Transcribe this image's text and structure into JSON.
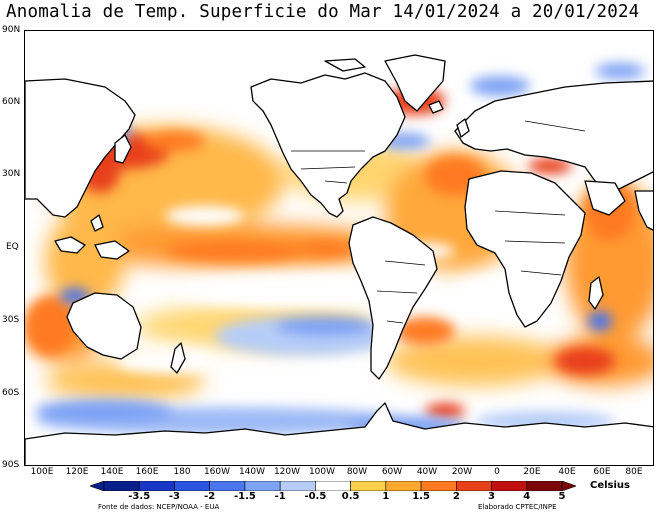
{
  "title": "Anomalia de Temp. Superficie do Mar 14/01/2024 a 20/01/2024",
  "lat_labels": [
    "90N",
    "60N",
    "30N",
    "EQ",
    "30S",
    "60S",
    "90S"
  ],
  "lon_labels": [
    "100E",
    "120E",
    "140E",
    "160E",
    "180",
    "160W",
    "140W",
    "120W",
    "100W",
    "80W",
    "60W",
    "40W",
    "20W",
    "0",
    "20E",
    "40E",
    "60E",
    "80E"
  ],
  "colorbar": {
    "labels": [
      "-3.5",
      "-3",
      "-2",
      "-1.5",
      "-1",
      "-0.5",
      "0.5",
      "1",
      "1.5",
      "2",
      "3",
      "4",
      "5"
    ],
    "colors": [
      "#0b1f8c",
      "#1737c4",
      "#2a55e0",
      "#4a77ee",
      "#7ea2f4",
      "#b6cdf8",
      "#ffffff",
      "#ffd04a",
      "#ffaa2e",
      "#ff7a22",
      "#e8411a",
      "#c01010",
      "#7a0606"
    ],
    "unit": "Celsius"
  },
  "source": "Fonte de dados: NCEP/NOAA - EUA",
  "credit": "Elaborado CPTEC/INPE",
  "map": {
    "ocean_color": "#ffffff",
    "land_color": "#ffffff",
    "coastline_color": "#000000"
  }
}
